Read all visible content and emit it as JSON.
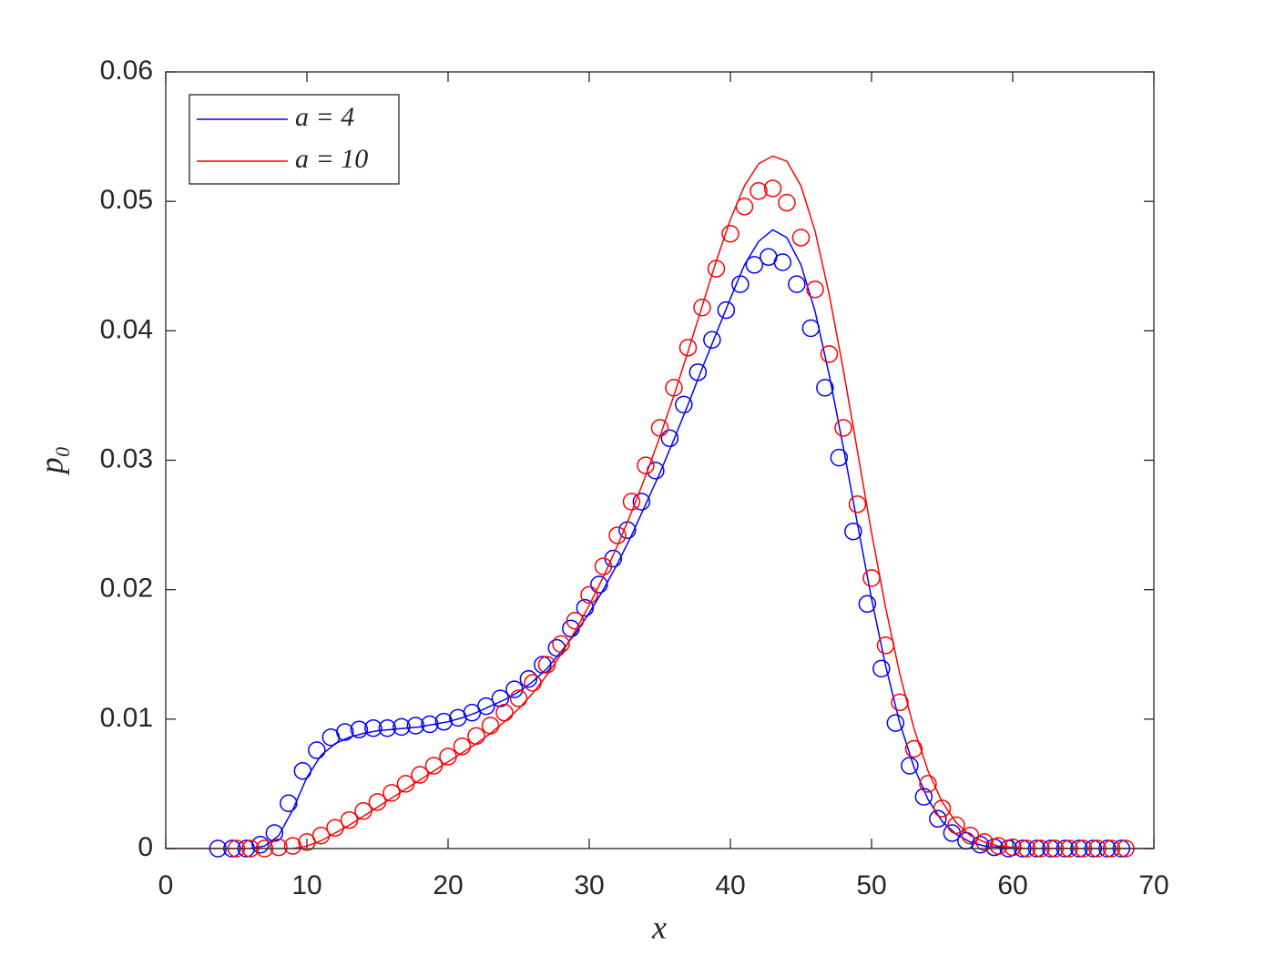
{
  "chart_data": {
    "type": "line",
    "xlabel": "x",
    "ylabel": "p₀",
    "xlim": [
      0,
      70
    ],
    "xticks": [
      0,
      10,
      20,
      30,
      40,
      50,
      60,
      70
    ],
    "ylim": [
      0,
      0.06
    ],
    "yticks": [
      0,
      0.01,
      0.02,
      0.03,
      0.04,
      0.05,
      0.06
    ],
    "legend": "upper left",
    "grid": false,
    "series": [
      {
        "name": "a = 4",
        "color": "#0000ff",
        "x": [
          0,
          6,
          7,
          8,
          9,
          10,
          11,
          12,
          13,
          14,
          15,
          16,
          17,
          18,
          19,
          20,
          21,
          22,
          23,
          24,
          25,
          26,
          27,
          28,
          29,
          30,
          31,
          32,
          33,
          34,
          35,
          36,
          37,
          38,
          39,
          40,
          41,
          42,
          43,
          44,
          45,
          46,
          47,
          48,
          49,
          50,
          51,
          52,
          53,
          54,
          55,
          56,
          57,
          58,
          59,
          60,
          70
        ],
        "values": [
          0,
          0,
          0.0002,
          0.001,
          0.003,
          0.0055,
          0.0072,
          0.0081,
          0.0086,
          0.0089,
          0.0091,
          0.0092,
          0.0093,
          0.0094,
          0.0096,
          0.0098,
          0.0101,
          0.0105,
          0.011,
          0.0115,
          0.0121,
          0.0129,
          0.0139,
          0.0152,
          0.0166,
          0.0182,
          0.02,
          0.022,
          0.0242,
          0.0266,
          0.029,
          0.0316,
          0.0343,
          0.0371,
          0.0398,
          0.0425,
          0.0451,
          0.0469,
          0.0478,
          0.0472,
          0.0451,
          0.0415,
          0.0366,
          0.031,
          0.0251,
          0.0193,
          0.0141,
          0.0097,
          0.0063,
          0.0038,
          0.0021,
          0.0011,
          0.0005,
          0.0002,
          0.0001,
          0,
          0
        ],
        "marker_x": [
          3.7,
          4.7,
          5.7,
          6.7,
          7.7,
          8.7,
          9.7,
          10.7,
          11.7,
          12.7,
          13.7,
          14.7,
          15.7,
          16.7,
          17.7,
          18.7,
          19.7,
          20.7,
          21.7,
          22.7,
          23.7,
          24.7,
          25.7,
          26.7,
          27.7,
          28.7,
          29.7,
          30.7,
          31.7,
          32.7,
          33.7,
          34.7,
          35.7,
          36.7,
          37.7,
          38.7,
          39.7,
          40.7,
          41.7,
          42.7,
          43.7,
          44.7,
          45.7,
          46.7,
          47.7,
          48.7,
          49.7,
          50.7,
          51.7,
          52.7,
          53.7,
          54.7,
          55.7,
          56.7,
          57.7,
          58.7,
          59.7,
          60.7,
          61.7,
          62.7,
          63.7,
          64.7,
          65.7,
          66.7,
          67.7
        ],
        "marker_values": [
          0,
          0,
          0,
          0.0003,
          0.0012,
          0.0035,
          0.006,
          0.0076,
          0.0086,
          0.009,
          0.0092,
          0.0093,
          0.0093,
          0.0094,
          0.0095,
          0.0096,
          0.0098,
          0.0101,
          0.0105,
          0.011,
          0.0116,
          0.0123,
          0.0131,
          0.0142,
          0.0155,
          0.017,
          0.0186,
          0.0204,
          0.0224,
          0.0246,
          0.0268,
          0.0292,
          0.0317,
          0.0343,
          0.0368,
          0.0393,
          0.0416,
          0.0436,
          0.0451,
          0.0457,
          0.0453,
          0.0436,
          0.0402,
          0.0356,
          0.0302,
          0.0245,
          0.0189,
          0.0139,
          0.0097,
          0.0064,
          0.004,
          0.0023,
          0.0012,
          0.0006,
          0.0003,
          0.0001,
          0,
          0,
          0,
          0,
          0,
          0,
          0,
          0,
          0
        ]
      },
      {
        "name": "a = 10",
        "color": "#ff0000",
        "x": [
          0,
          9,
          10,
          11,
          12,
          13,
          14,
          15,
          16,
          17,
          18,
          19,
          20,
          21,
          22,
          23,
          24,
          25,
          26,
          27,
          28,
          29,
          30,
          31,
          32,
          33,
          34,
          35,
          36,
          37,
          38,
          39,
          40,
          41,
          42,
          43,
          44,
          45,
          46,
          47,
          48,
          49,
          50,
          51,
          52,
          53,
          54,
          55,
          56,
          57,
          58,
          59,
          60,
          61,
          70
        ],
        "values": [
          0,
          0,
          0.0002,
          0.0006,
          0.0012,
          0.0018,
          0.0025,
          0.0032,
          0.0039,
          0.0046,
          0.0053,
          0.006,
          0.0067,
          0.0074,
          0.0081,
          0.0089,
          0.0098,
          0.0108,
          0.012,
          0.0134,
          0.015,
          0.0168,
          0.0188,
          0.021,
          0.0234,
          0.026,
          0.0288,
          0.0318,
          0.035,
          0.0384,
          0.0419,
          0.0454,
          0.0486,
          0.0512,
          0.0529,
          0.0535,
          0.0531,
          0.0512,
          0.0477,
          0.0428,
          0.037,
          0.0307,
          0.0244,
          0.0186,
          0.0135,
          0.0093,
          0.006,
          0.0036,
          0.002,
          0.001,
          0.0005,
          0.0002,
          0.0001,
          0,
          0
        ],
        "marker_x": [
          5,
          6,
          7,
          8,
          9,
          10,
          11,
          12,
          13,
          14,
          15,
          16,
          17,
          18,
          19,
          20,
          21,
          22,
          23,
          24,
          25,
          26,
          27,
          28,
          29,
          30,
          31,
          32,
          33,
          34,
          35,
          36,
          37,
          38,
          39,
          40,
          41,
          42,
          43,
          44,
          45,
          46,
          47,
          48,
          49,
          50,
          51,
          52,
          53,
          54,
          55,
          56,
          57,
          58,
          59,
          60,
          61,
          62,
          63,
          64,
          65,
          66,
          67,
          68
        ],
        "marker_values": [
          0,
          0,
          0,
          0.0001,
          0.0002,
          0.0005,
          0.001,
          0.0016,
          0.0022,
          0.0029,
          0.0036,
          0.0043,
          0.005,
          0.0057,
          0.0064,
          0.0071,
          0.0079,
          0.0087,
          0.0095,
          0.0105,
          0.0116,
          0.0128,
          0.0142,
          0.0158,
          0.0176,
          0.0196,
          0.0218,
          0.0242,
          0.0268,
          0.0296,
          0.0325,
          0.0356,
          0.0387,
          0.0418,
          0.0448,
          0.0475,
          0.0496,
          0.0508,
          0.051,
          0.0499,
          0.0472,
          0.0432,
          0.0382,
          0.0325,
          0.0266,
          0.0209,
          0.0157,
          0.0113,
          0.0077,
          0.005,
          0.0031,
          0.0018,
          0.001,
          0.0005,
          0.0002,
          0.0001,
          0,
          0,
          0,
          0,
          0,
          0,
          0,
          0
        ]
      }
    ]
  }
}
